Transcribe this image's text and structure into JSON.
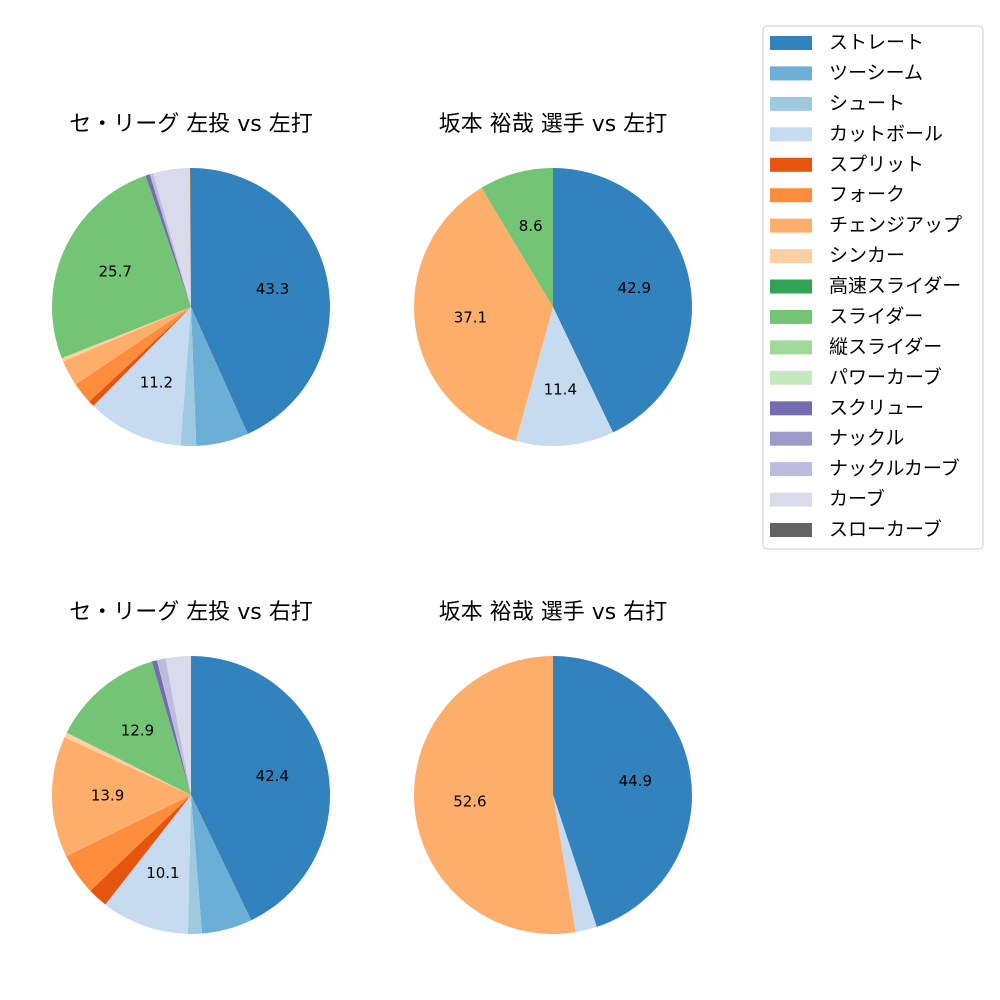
{
  "legend": {
    "placement": "right",
    "items": [
      {
        "label": "ストレート",
        "color": "#3182bd"
      },
      {
        "label": "ツーシーム",
        "color": "#6baed6"
      },
      {
        "label": "シュート",
        "color": "#9ecae1"
      },
      {
        "label": "カットボール",
        "color": "#c6dbef"
      },
      {
        "label": "スプリット",
        "color": "#e6550d"
      },
      {
        "label": "フォーク",
        "color": "#fd8d3c"
      },
      {
        "label": "チェンジアップ",
        "color": "#fdae6b"
      },
      {
        "label": "シンカー",
        "color": "#fdd0a2"
      },
      {
        "label": "高速スライダー",
        "color": "#31a354"
      },
      {
        "label": "スライダー",
        "color": "#74c476"
      },
      {
        "label": "縦スライダー",
        "color": "#a1d99b"
      },
      {
        "label": "パワーカーブ",
        "color": "#c7e9c0"
      },
      {
        "label": "スクリュー",
        "color": "#756bb1"
      },
      {
        "label": "ナックル",
        "color": "#9e9ac8"
      },
      {
        "label": "ナックルカーブ",
        "color": "#bcbddc"
      },
      {
        "label": "カーブ",
        "color": "#dadaeb"
      },
      {
        "label": "スローカーブ",
        "color": "#636363"
      }
    ]
  },
  "chart_data": [
    {
      "type": "pie",
      "title": "セ・リーグ 左投 vs 左打",
      "slices": [
        {
          "category": "ストレート",
          "value": 43.3,
          "label": "43.3"
        },
        {
          "category": "ツーシーム",
          "value": 6.1,
          "label": ""
        },
        {
          "category": "シュート",
          "value": 1.8,
          "label": ""
        },
        {
          "category": "カットボール",
          "value": 11.2,
          "label": "11.2"
        },
        {
          "category": "スプリット",
          "value": 0.7,
          "label": ""
        },
        {
          "category": "フォーク",
          "value": 2.5,
          "label": ""
        },
        {
          "category": "チェンジアップ",
          "value": 3.0,
          "label": ""
        },
        {
          "category": "シンカー",
          "value": 0.4,
          "label": ""
        },
        {
          "category": "スライダー",
          "value": 25.7,
          "label": "25.7"
        },
        {
          "category": "スクリュー",
          "value": 0.5,
          "label": ""
        },
        {
          "category": "ナックルカーブ",
          "value": 0.4,
          "label": ""
        },
        {
          "category": "カーブ",
          "value": 4.3,
          "label": ""
        },
        {
          "category": "スローカーブ",
          "value": 0.1,
          "label": ""
        }
      ]
    },
    {
      "type": "pie",
      "title": "坂本 裕哉 選手 vs 左打",
      "slices": [
        {
          "category": "ストレート",
          "value": 42.9,
          "label": "42.9"
        },
        {
          "category": "カットボール",
          "value": 11.4,
          "label": "11.4"
        },
        {
          "category": "チェンジアップ",
          "value": 37.1,
          "label": "37.1"
        },
        {
          "category": "スライダー",
          "value": 8.6,
          "label": "8.6"
        }
      ]
    },
    {
      "type": "pie",
      "title": "セ・リーグ 左投 vs 右打",
      "slices": [
        {
          "category": "ストレート",
          "value": 42.4,
          "label": "42.4"
        },
        {
          "category": "ツーシーム",
          "value": 5.8,
          "label": ""
        },
        {
          "category": "シュート",
          "value": 1.6,
          "label": ""
        },
        {
          "category": "カットボール",
          "value": 10.1,
          "label": "10.1"
        },
        {
          "category": "スプリット",
          "value": 2.3,
          "label": ""
        },
        {
          "category": "フォーク",
          "value": 4.8,
          "label": ""
        },
        {
          "category": "チェンジアップ",
          "value": 13.9,
          "label": "13.9"
        },
        {
          "category": "シンカー",
          "value": 0.6,
          "label": ""
        },
        {
          "category": "スライダー",
          "value": 12.9,
          "label": "12.9"
        },
        {
          "category": "スクリュー",
          "value": 0.6,
          "label": ""
        },
        {
          "category": "ナックルカーブ",
          "value": 1.0,
          "label": ""
        },
        {
          "category": "カーブ",
          "value": 2.9,
          "label": ""
        }
      ]
    },
    {
      "type": "pie",
      "title": "坂本 裕哉 選手 vs 右打",
      "slices": [
        {
          "category": "ストレート",
          "value": 44.9,
          "label": "44.9"
        },
        {
          "category": "カットボール",
          "value": 2.5,
          "label": ""
        },
        {
          "category": "チェンジアップ",
          "value": 52.6,
          "label": "52.6"
        }
      ]
    }
  ]
}
